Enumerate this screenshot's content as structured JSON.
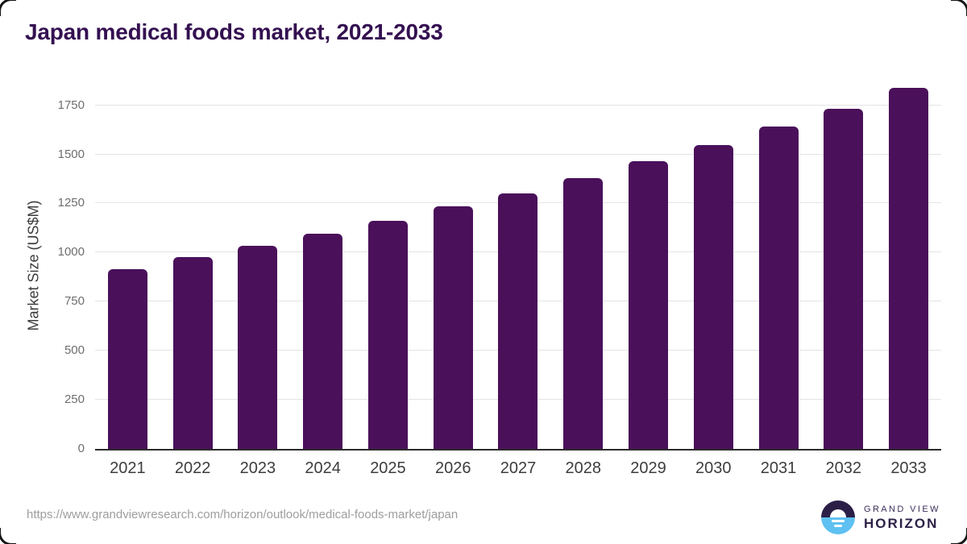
{
  "header": {
    "title": "Japan medical foods market, 2021-2033"
  },
  "chart_data": {
    "type": "bar",
    "title": "Japan medical foods market, 2021-2033",
    "categories": [
      "2021",
      "2022",
      "2023",
      "2024",
      "2025",
      "2026",
      "2027",
      "2028",
      "2029",
      "2030",
      "2031",
      "2032",
      "2033"
    ],
    "values": [
      917,
      977,
      1033,
      1095,
      1162,
      1234,
      1303,
      1381,
      1464,
      1546,
      1641,
      1734,
      1839
    ],
    "xlabel": "",
    "ylabel": "Market Size (US$M)",
    "yticks": [
      0,
      250,
      500,
      750,
      1000,
      1250,
      1500,
      1750
    ],
    "ylim": [
      0,
      1750
    ],
    "grid": true,
    "legend": false,
    "bar_color": "#4a105a"
  },
  "footer": {
    "source_url": "https://www.grandviewresearch.com/horizon/outlook/medical-foods-market/japan",
    "logo": {
      "line1": "GRAND VIEW",
      "line2": "HORIZON"
    }
  },
  "colors": {
    "bar": "#4a105a",
    "title_text": "#341051",
    "axis_line": "#2b2b2b",
    "gridline": "#e4e4e4",
    "ytick_text": "#6e6e6e",
    "xlabel_text": "#3d3d3d",
    "url_text": "#9e9e9e",
    "logo_dark": "#2b1f47",
    "logo_blue": "#5ec1f2"
  }
}
